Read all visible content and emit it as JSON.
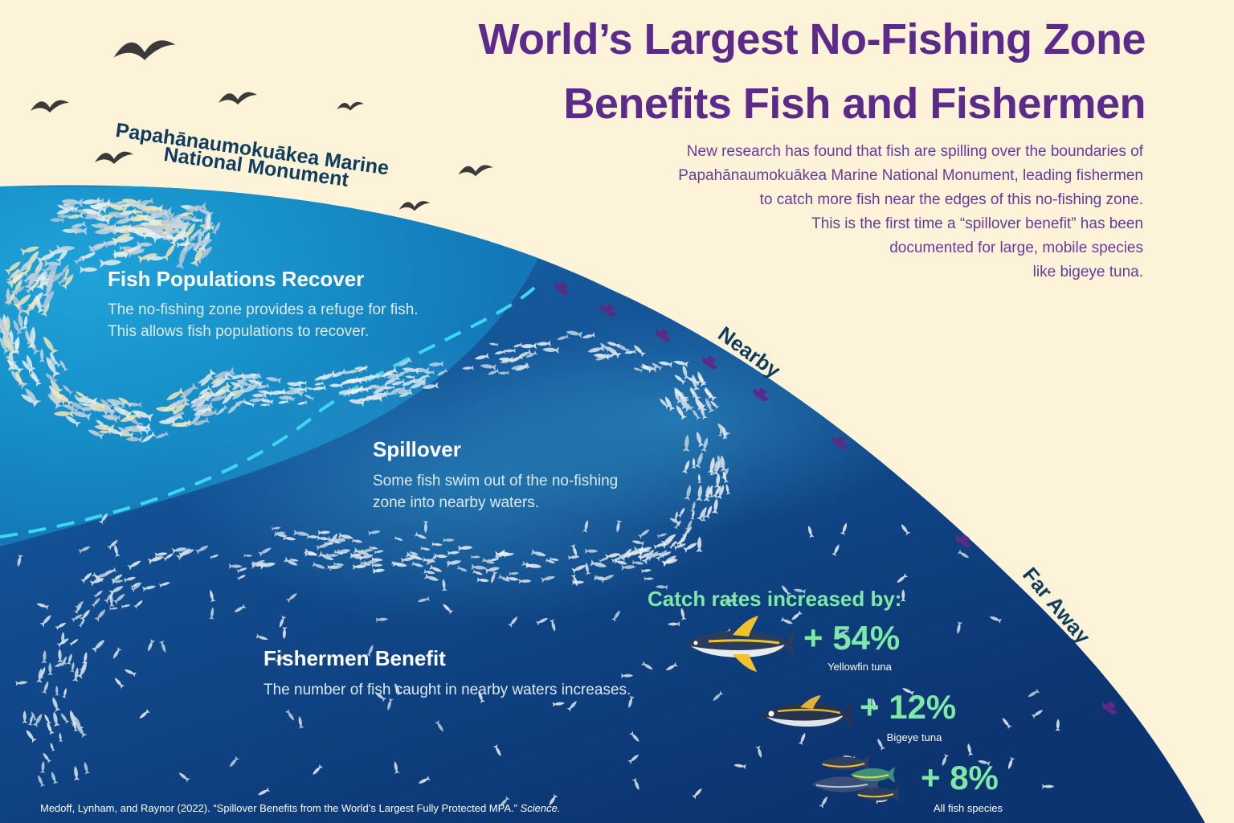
{
  "title": {
    "line1": "World’s Largest No-Fishing Zone",
    "line2": "Benefits Fish and Fishermen"
  },
  "intro": {
    "lines": [
      "New research has found that fish are spilling over the boundaries of",
      "Papahānaumokuākea Marine National Monument, leading fishermen",
      "to catch more fish near the edges of this no-fishing zone.",
      "This is the first time a “spillover benefit” has been",
      "documented for large, mobile species",
      "like bigeye tuna."
    ]
  },
  "monument_label": {
    "line1": "Papahānaumokuākea Marine",
    "line2": "National Monument"
  },
  "sections": {
    "recover": {
      "heading": "Fish Populations Recover",
      "body1": "The no-fishing zone provides a refuge for fish.",
      "body2": "This allows fish populations to recover."
    },
    "spillover": {
      "heading": "Spillover",
      "body1": "Some fish swim out of the no-fishing",
      "body2": "zone into nearby waters."
    },
    "fishermen": {
      "heading": "Fishermen Benefit",
      "body1": "The number of fish caught in nearby waters increases."
    }
  },
  "zones": {
    "nearby": "Nearby",
    "far_away": "Far Away"
  },
  "catch": {
    "heading": "Catch rates increased by:",
    "items": [
      {
        "value": "+ 54%",
        "label": "Yellowfin tuna",
        "icon": "yellowfin-tuna-icon"
      },
      {
        "value": "+ 12%",
        "label": "Bigeye tuna",
        "icon": "bigeye-tuna-icon"
      },
      {
        "value": "+ 8%",
        "label": "All fish species",
        "icon": "mixed-fish-icon"
      }
    ]
  },
  "citation": {
    "text": "Medoff, Lynham, and Raynor (2022). “Spillover Benefits from the World’s Largest Fully Protected MPA.”",
    "journal": "Science."
  },
  "colors": {
    "background": "#fdf3d8",
    "title": "#5c2a8a",
    "intro_text": "#6a3a98",
    "ocean_light": "#1d8fc8",
    "ocean_deep": "#0e3d78",
    "boundary_dash": "#3fd6f0",
    "catch_green": "#7ee8a6",
    "boat": "#5a2b86"
  }
}
